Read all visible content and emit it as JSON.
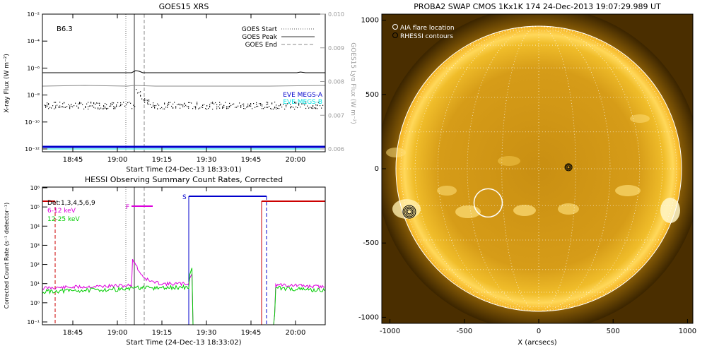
{
  "chart_data": [
    {
      "type": "line",
      "title": "GOES15 XRS",
      "annotation": "B6.3",
      "xlabel": "Start Time (24-Dec-13 18:33:01)",
      "ylabel": "X-ray Flux (W m⁻²)",
      "y2label": "GOES15 Lyα Flux (W m⁻²)",
      "x_ticks": [
        "18:45",
        "19:00",
        "19:15",
        "19:30",
        "19:45",
        "20:00"
      ],
      "y_ticks": [
        "10⁻¹²",
        "10⁻¹⁰",
        "10⁻⁸",
        "10⁻⁶",
        "10⁻⁴",
        "10⁻²"
      ],
      "y2_ticks": [
        "0.006",
        "0.007",
        "0.008",
        "0.009",
        "0.010"
      ],
      "ylim": [
        1e-12,
        0.01
      ],
      "y2lim": [
        0.006,
        0.01
      ],
      "legend": [
        {
          "name": "GOES Start",
          "style": "dotted"
        },
        {
          "name": "GOES Peak",
          "style": "solid"
        },
        {
          "name": "GOES End",
          "style": "dashed"
        }
      ],
      "legend_bottom": [
        "EVE MEGS-A",
        "EVE MEGS-B"
      ],
      "colors": {
        "megs_a": "#0000cc",
        "megs_b": "#00e5e5",
        "lya": "#999999"
      }
    },
    {
      "type": "line",
      "title": "HESSI Observing Summary Count Rates, Corrected",
      "xlabel": "Start Time (24-Dec-13 18:33:02)",
      "ylabel": "Corrected Count Rate (s⁻¹ detector⁻¹)",
      "x_ticks": [
        "18:45",
        "19:00",
        "19:15",
        "19:30",
        "19:45",
        "20:00"
      ],
      "y_ticks": [
        "10⁻¹",
        "10⁰",
        "10¹",
        "10²",
        "10³",
        "10⁴",
        "10⁵",
        "10⁶"
      ],
      "ylim": [
        0.1,
        1000000
      ],
      "legend": [
        {
          "name": "Det:1,3,4,5,6,9",
          "color": "#000000"
        },
        {
          "name": "6-12 keV",
          "color": "#dd00dd"
        },
        {
          "name": "12-25 keV",
          "color": "#00cc00"
        }
      ],
      "flags": [
        "F",
        "S"
      ],
      "colors": {
        "low": "#dd00dd",
        "high": "#00cc00",
        "night": "#cc0000",
        "saa": "#0000cc"
      }
    },
    {
      "type": "heatmap",
      "title": "PROBA2 SWAP CMOS 1Kx1K 174 24-Dec-2013 19:07:29.989 UT",
      "xlabel": "X (arcsecs)",
      "x_ticks": [
        "-1000",
        "-500",
        "0",
        "500",
        "1000"
      ],
      "y_ticks": [
        "-1000",
        "-500",
        "0",
        "500",
        "1000"
      ],
      "xlim": [
        -1150,
        1150
      ],
      "ylim": [
        -1100,
        1050
      ],
      "legend": [
        "AIA flare location",
        "RHESSI contours"
      ],
      "aia_flare_location": {
        "x": -340,
        "y": -230
      },
      "rhessi_contours": [
        {
          "x": -870,
          "y": -290
        },
        {
          "x": 200,
          "y": 10
        }
      ]
    }
  ]
}
